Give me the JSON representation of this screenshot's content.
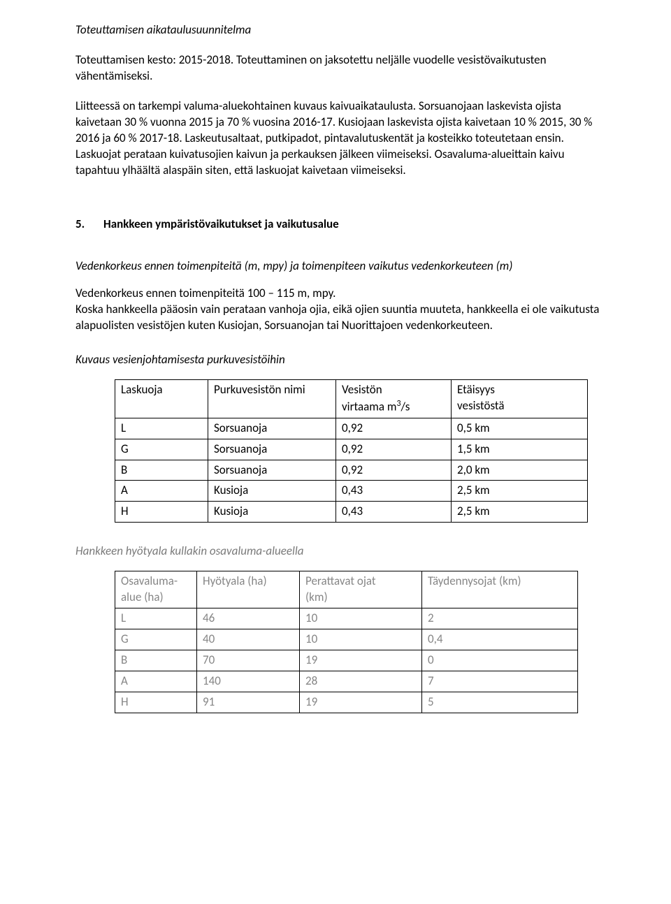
{
  "headings": {
    "schedule_title": "Toteuttamisen aikataulusuunnitelma",
    "section5_num": "5.",
    "section5_title": "Hankkeen ympäristövaikutukset ja vaikutusalue",
    "sub_waterlevel": "Vedenkorkeus ennen toimenpiteitä (m, mpy) ja toimenpiteen vaikutus vedenkorkeuteen (m)",
    "sub_discharge": "Kuvaus vesienjohtamisesta purkuvesistöihin",
    "sub_benefit": "Hankkeen hyötyala kullakin osavaluma-alueella"
  },
  "paragraphs": {
    "p1": "Toteuttamisen kesto: 2015-2018. Toteuttaminen on jaksotettu neljälle vuodelle vesistövaikutusten vähentämiseksi.",
    "p2": "Liitteessä on tarkempi valuma-aluekohtainen kuvaus kaivuaikataulusta. Sorsuanojaan laskevista ojista kaivetaan 30 % vuonna 2015 ja 70 % vuosina 2016-17. Kusiojaan laskevista ojista kaivetaan 10 % 2015, 30 % 2016 ja 60 % 2017-18. Laskeutusaltaat, putkipadot, pintavalutuskentät ja kosteikko toteutetaan ensin. Laskuojat perataan kuivatusojien kaivun ja perkauksen jälkeen viimeiseksi. Osavaluma-alueittain kaivu tapahtuu ylhäältä alaspäin siten, että laskuojat kaivetaan viimeiseksi.",
    "p3": "Vedenkorkeus ennen toimenpiteitä 100 – 115 m, mpy.",
    "p4": "Koska hankkeella pääosin vain perataan vanhoja ojia, eikä ojien suuntia muuteta, hankkeella ei ole vaikutusta alapuolisten vesistöjen kuten Kusiojan, Sorsuanojan tai Nuorittajoen vedenkorkeuteen."
  },
  "table1": {
    "headers": {
      "c1": "Laskuoja",
      "c2": "Purkuvesistön nimi",
      "c3a": "Vesistön",
      "c3b_pre": "virtaama m",
      "c3b_sup": "3",
      "c3b_post": "/s",
      "c4a": "Etäisyys",
      "c4b": "vesistöstä"
    },
    "rows": [
      {
        "a": "L",
        "b": "Sorsuanoja",
        "c": "0,92",
        "d": "0,5 km"
      },
      {
        "a": "G",
        "b": "Sorsuanoja",
        "c": "0,92",
        "d": "1,5 km"
      },
      {
        "a": "B",
        "b": "Sorsuanoja",
        "c": "0,92",
        "d": "2,0 km"
      },
      {
        "a": "A",
        "b": "Kusioja",
        "c": "0,43",
        "d": "2,5 km"
      },
      {
        "a": "H",
        "b": "Kusioja",
        "c": "0,43",
        "d": "2,5 km"
      }
    ]
  },
  "table2": {
    "headers": {
      "c1a": "Osavaluma-",
      "c1b": "alue (ha)",
      "c2": "Hyötyala (ha)",
      "c3a": "Perattavat ojat",
      "c3b": "(km)",
      "c4": "Täydennysojat (km)"
    },
    "rows": [
      {
        "a": "L",
        "b": "46",
        "c": "10",
        "d": "2"
      },
      {
        "a": "G",
        "b": "40",
        "c": "10",
        "d": "0,4"
      },
      {
        "a": "B",
        "b": "70",
        "c": "19",
        "d": "0"
      },
      {
        "a": "A",
        "b": "140",
        "c": "28",
        "d": "7"
      },
      {
        "a": "H",
        "b": "91",
        "c": "19",
        "d": "5"
      }
    ]
  }
}
